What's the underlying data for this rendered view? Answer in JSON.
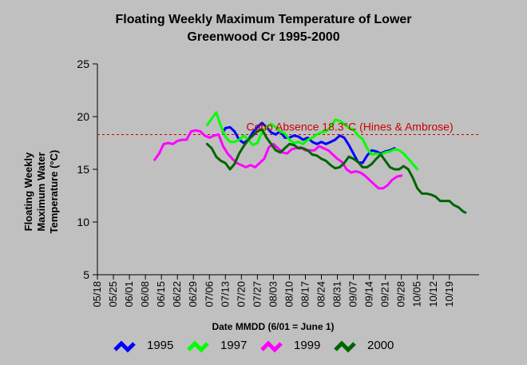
{
  "chart_data": {
    "type": "line",
    "title_line1": "Floating Weekly Maximum Temperature of Lower",
    "title_line2": "Greenwood Cr 1995-2000",
    "ylabel_line1": "Floating Weekly",
    "ylabel_line2": "Maximum Water",
    "ylabel_line3": "Temperature (°C)",
    "xlabel": "Date MMDD (6/01 = June 1)",
    "ylim": [
      5,
      25
    ],
    "yticks": [
      "5",
      "10",
      "15",
      "20",
      "25"
    ],
    "x_start": "05/18",
    "x_end": "11/01",
    "xticks": [
      "05/18",
      "05/25",
      "06/01",
      "06/08",
      "06/15",
      "06/22",
      "06/29",
      "07/06",
      "07/13",
      "07/20",
      "07/27",
      "08/03",
      "08/10",
      "08/17",
      "08/24",
      "08/31",
      "09/07",
      "09/14",
      "09/21",
      "09/28",
      "10/05",
      "10/12",
      "10/19"
    ],
    "reference_line": {
      "value": 18.3,
      "label": "Coho Absence 18.3°C (Hines & Ambrose)",
      "color": "#cc0000"
    },
    "legend_position": "bottom",
    "series": [
      {
        "name": "1995",
        "color": "#0000ff",
        "points": [
          [
            "07/12",
            18.5
          ],
          [
            "07/13",
            18.9
          ],
          [
            "07/15",
            19.0
          ],
          [
            "07/17",
            18.6
          ],
          [
            "07/19",
            17.8
          ],
          [
            "07/21",
            17.5
          ],
          [
            "07/23",
            17.8
          ],
          [
            "07/25",
            18.5
          ],
          [
            "07/27",
            19.0
          ],
          [
            "07/29",
            19.4
          ],
          [
            "07/31",
            19.0
          ],
          [
            "08/02",
            18.5
          ],
          [
            "08/04",
            18.3
          ],
          [
            "08/06",
            18.6
          ],
          [
            "08/08",
            18.0
          ],
          [
            "08/10",
            18.0
          ],
          [
            "08/12",
            18.2
          ],
          [
            "08/14",
            18.1
          ],
          [
            "08/16",
            17.8
          ],
          [
            "08/18",
            18.0
          ],
          [
            "08/20",
            17.6
          ],
          [
            "08/22",
            17.4
          ],
          [
            "08/24",
            17.6
          ],
          [
            "08/26",
            17.4
          ],
          [
            "08/28",
            17.6
          ],
          [
            "08/30",
            17.8
          ],
          [
            "09/01",
            18.2
          ],
          [
            "09/03",
            18.0
          ],
          [
            "09/05",
            17.3
          ],
          [
            "09/07",
            16.5
          ],
          [
            "09/09",
            15.7
          ],
          [
            "09/11",
            15.6
          ],
          [
            "09/13",
            16.3
          ],
          [
            "09/15",
            16.8
          ],
          [
            "09/17",
            16.7
          ],
          [
            "09/19",
            16.5
          ],
          [
            "09/21",
            16.7
          ],
          [
            "09/23",
            16.8
          ],
          [
            "09/25",
            17.0
          ]
        ]
      },
      {
        "name": "1997",
        "color": "#00ff00",
        "points": [
          [
            "07/05",
            19.2
          ],
          [
            "07/07",
            19.8
          ],
          [
            "07/09",
            20.4
          ],
          [
            "07/11",
            19.1
          ],
          [
            "07/13",
            18.1
          ],
          [
            "07/15",
            17.6
          ],
          [
            "07/17",
            17.6
          ],
          [
            "07/19",
            17.8
          ],
          [
            "07/21",
            18.2
          ],
          [
            "07/23",
            17.8
          ],
          [
            "07/25",
            17.3
          ],
          [
            "07/27",
            17.5
          ],
          [
            "07/29",
            18.5
          ],
          [
            "07/31",
            19.0
          ],
          [
            "08/02",
            19.3
          ],
          [
            "08/04",
            19.0
          ],
          [
            "08/06",
            18.6
          ],
          [
            "08/08",
            18.4
          ],
          [
            "08/10",
            17.8
          ],
          [
            "08/12",
            17.5
          ],
          [
            "08/14",
            17.6
          ],
          [
            "08/16",
            17.4
          ],
          [
            "08/18",
            17.8
          ],
          [
            "08/20",
            18.0
          ],
          [
            "08/22",
            18.3
          ],
          [
            "08/24",
            18.5
          ],
          [
            "08/26",
            18.6
          ],
          [
            "08/28",
            19.0
          ],
          [
            "08/30",
            19.7
          ],
          [
            "09/01",
            19.6
          ],
          [
            "09/03",
            19.3
          ],
          [
            "09/05",
            18.9
          ],
          [
            "09/07",
            18.8
          ],
          [
            "09/09",
            18.2
          ],
          [
            "09/11",
            17.9
          ],
          [
            "09/13",
            17.0
          ],
          [
            "09/15",
            16.4
          ],
          [
            "09/17",
            16.5
          ],
          [
            "09/19",
            16.4
          ],
          [
            "09/21",
            16.6
          ],
          [
            "09/23",
            16.7
          ],
          [
            "09/25",
            16.9
          ],
          [
            "09/27",
            16.8
          ],
          [
            "09/29",
            16.5
          ],
          [
            "10/01",
            16.0
          ],
          [
            "10/03",
            15.5
          ],
          [
            "10/05",
            15.0
          ]
        ]
      },
      {
        "name": "1999",
        "color": "#ff00ff",
        "points": [
          [
            "06/12",
            15.9
          ],
          [
            "06/14",
            16.5
          ],
          [
            "06/16",
            17.4
          ],
          [
            "06/18",
            17.5
          ],
          [
            "06/20",
            17.4
          ],
          [
            "06/22",
            17.7
          ],
          [
            "06/24",
            17.8
          ],
          [
            "06/26",
            17.8
          ],
          [
            "06/28",
            18.6
          ],
          [
            "06/30",
            18.7
          ],
          [
            "07/02",
            18.6
          ],
          [
            "07/04",
            18.2
          ],
          [
            "07/06",
            18.0
          ],
          [
            "07/08",
            18.2
          ],
          [
            "07/10",
            18.3
          ],
          [
            "07/12",
            17.2
          ],
          [
            "07/14",
            16.5
          ],
          [
            "07/16",
            16.0
          ],
          [
            "07/18",
            15.6
          ],
          [
            "07/20",
            15.4
          ],
          [
            "07/22",
            15.2
          ],
          [
            "07/24",
            15.4
          ],
          [
            "07/26",
            15.2
          ],
          [
            "07/28",
            15.6
          ],
          [
            "07/30",
            16.0
          ],
          [
            "08/01",
            17.1
          ],
          [
            "08/03",
            17.4
          ],
          [
            "08/05",
            17.0
          ],
          [
            "08/07",
            16.6
          ],
          [
            "08/09",
            16.5
          ],
          [
            "08/11",
            16.9
          ],
          [
            "08/13",
            17.0
          ],
          [
            "08/15",
            17.1
          ],
          [
            "08/17",
            16.8
          ],
          [
            "08/19",
            16.8
          ],
          [
            "08/21",
            16.8
          ],
          [
            "08/23",
            17.2
          ],
          [
            "08/25",
            17.0
          ],
          [
            "08/27",
            16.8
          ],
          [
            "08/29",
            16.4
          ],
          [
            "08/31",
            16.0
          ],
          [
            "09/02",
            15.7
          ],
          [
            "09/04",
            15.0
          ],
          [
            "09/06",
            14.7
          ],
          [
            "09/08",
            14.8
          ],
          [
            "09/10",
            14.7
          ],
          [
            "09/12",
            14.4
          ],
          [
            "09/14",
            14.0
          ],
          [
            "09/16",
            13.6
          ],
          [
            "09/18",
            13.2
          ],
          [
            "09/20",
            13.2
          ],
          [
            "09/22",
            13.5
          ],
          [
            "09/24",
            14.0
          ],
          [
            "09/26",
            14.3
          ],
          [
            "09/28",
            14.4
          ]
        ]
      },
      {
        "name": "2000",
        "color": "#006400",
        "points": [
          [
            "07/05",
            17.4
          ],
          [
            "07/07",
            17.0
          ],
          [
            "07/09",
            16.2
          ],
          [
            "07/11",
            15.8
          ],
          [
            "07/13",
            15.6
          ],
          [
            "07/15",
            15.0
          ],
          [
            "07/17",
            15.5
          ],
          [
            "07/19",
            16.5
          ],
          [
            "07/21",
            17.2
          ],
          [
            "07/23",
            17.8
          ],
          [
            "07/25",
            18.2
          ],
          [
            "07/27",
            18.6
          ],
          [
            "07/29",
            18.8
          ],
          [
            "07/31",
            18.0
          ],
          [
            "08/02",
            17.4
          ],
          [
            "08/04",
            16.8
          ],
          [
            "08/06",
            16.6
          ],
          [
            "08/08",
            17.0
          ],
          [
            "08/10",
            17.4
          ],
          [
            "08/12",
            17.3
          ],
          [
            "08/14",
            17.0
          ],
          [
            "08/16",
            17.0
          ],
          [
            "08/18",
            16.8
          ],
          [
            "08/20",
            16.4
          ],
          [
            "08/22",
            16.3
          ],
          [
            "08/24",
            16.0
          ],
          [
            "08/26",
            15.8
          ],
          [
            "08/28",
            15.4
          ],
          [
            "08/30",
            15.1
          ],
          [
            "09/01",
            15.2
          ],
          [
            "09/03",
            15.6
          ],
          [
            "09/05",
            16.2
          ],
          [
            "09/07",
            16.0
          ],
          [
            "09/09",
            15.7
          ],
          [
            "09/11",
            15.2
          ],
          [
            "09/13",
            15.2
          ],
          [
            "09/15",
            15.5
          ],
          [
            "09/17",
            16.0
          ],
          [
            "09/19",
            16.4
          ],
          [
            "09/21",
            15.8
          ],
          [
            "09/23",
            15.2
          ],
          [
            "09/25",
            15.0
          ],
          [
            "09/27",
            15.0
          ],
          [
            "09/29",
            15.3
          ],
          [
            "10/01",
            15.0
          ],
          [
            "10/03",
            14.2
          ],
          [
            "10/05",
            13.2
          ],
          [
            "10/07",
            12.7
          ],
          [
            "10/09",
            12.7
          ],
          [
            "10/11",
            12.6
          ],
          [
            "10/13",
            12.4
          ],
          [
            "10/15",
            12.0
          ],
          [
            "10/17",
            12.0
          ],
          [
            "10/19",
            12.0
          ],
          [
            "10/21",
            11.6
          ],
          [
            "10/23",
            11.4
          ],
          [
            "10/25",
            11.0
          ],
          [
            "10/26",
            10.9
          ]
        ]
      }
    ]
  }
}
